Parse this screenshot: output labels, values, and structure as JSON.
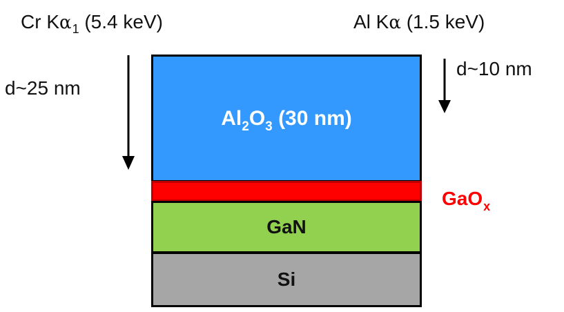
{
  "sources": {
    "left": {
      "prefix": "Cr K",
      "greek": "α",
      "subscript": "1",
      "suffix": " (5.4 keV)"
    },
    "right": {
      "prefix": "Al K",
      "greek": "α",
      "suffix": " (1.5 keV)"
    }
  },
  "depths": {
    "left": "d~25 nm",
    "right": "d~10 nm"
  },
  "layers": {
    "al2o3": {
      "part1": "Al",
      "sub1": "2",
      "part2": "O",
      "sub2": "3",
      "part3": " (30 nm)",
      "color": "#3399ff"
    },
    "gaox": {
      "text": "GaO",
      "subscript": "x",
      "color": "#ff0000"
    },
    "gan": {
      "text": "GaN",
      "color": "#92d050"
    },
    "si": {
      "text": "Si",
      "color": "#a6a6a6"
    }
  }
}
